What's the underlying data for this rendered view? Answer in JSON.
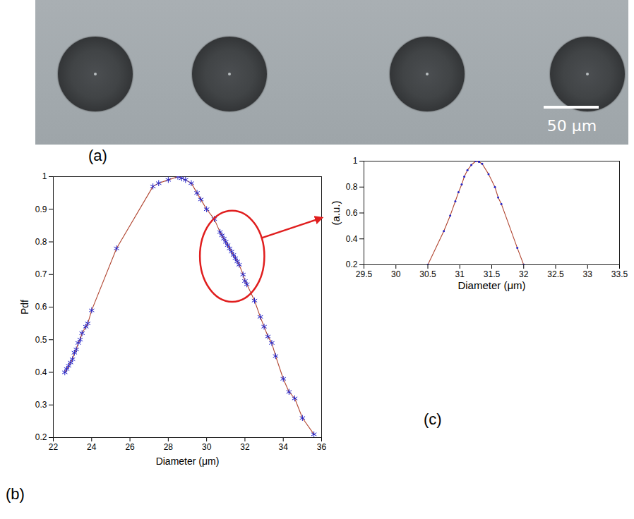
{
  "image": {
    "panel": "(a)",
    "scale_bar": "50 μm"
  },
  "chart_data": [
    {
      "panel": "(b)",
      "type": "line",
      "x_label": "Diameter (μm)",
      "y_label": "Pdf",
      "x": [
        22.6,
        22.7,
        22.8,
        22.9,
        23.0,
        23.1,
        23.2,
        23.3,
        23.4,
        23.5,
        23.7,
        23.8,
        24.0,
        25.3,
        27.2,
        27.5,
        28.0,
        28.5,
        28.7,
        28.9,
        29.2,
        29.5,
        29.7,
        30.0,
        30.4,
        30.7,
        30.8,
        30.9,
        31.0,
        31.1,
        31.2,
        31.3,
        31.4,
        31.5,
        31.6,
        31.7,
        31.9,
        32.0,
        32.1,
        32.5,
        32.8,
        33.0,
        33.2,
        33.4,
        33.6,
        34.0,
        34.3,
        34.6,
        35.0,
        35.6
      ],
      "series": [
        {
          "color": "#b0442f",
          "marker": "star",
          "values": [
            0.4,
            0.41,
            0.42,
            0.43,
            0.44,
            0.46,
            0.47,
            0.49,
            0.5,
            0.52,
            0.54,
            0.55,
            0.59,
            0.78,
            0.97,
            0.98,
            0.99,
            1.0,
            0.995,
            0.99,
            0.98,
            0.95,
            0.93,
            0.9,
            0.87,
            0.83,
            0.82,
            0.81,
            0.8,
            0.79,
            0.78,
            0.77,
            0.76,
            0.75,
            0.74,
            0.73,
            0.7,
            0.68,
            0.67,
            0.62,
            0.57,
            0.54,
            0.51,
            0.49,
            0.45,
            0.38,
            0.34,
            0.32,
            0.26,
            0.21
          ]
        }
      ],
      "xlim": [
        22,
        36
      ],
      "xticks": [
        22,
        24,
        26,
        28,
        30,
        32,
        34,
        36
      ],
      "ylim": [
        0.2,
        1
      ],
      "yticks": [
        0.2,
        0.3,
        0.4,
        0.5,
        0.6,
        0.7,
        0.8,
        0.9,
        1
      ],
      "grid": false
    },
    {
      "panel": "(c)",
      "type": "line",
      "x_label": "Diameter (μm)",
      "y_label": "(a.u.)",
      "x": [
        30.5,
        30.75,
        30.85,
        30.93,
        30.98,
        31.03,
        31.07,
        31.12,
        31.18,
        31.25,
        31.3,
        31.35,
        31.45,
        31.55,
        31.6,
        31.65,
        31.9,
        32.0
      ],
      "series": [
        {
          "color": "#b0442f",
          "marker": "point",
          "values": [
            0.2,
            0.46,
            0.58,
            0.69,
            0.76,
            0.82,
            0.88,
            0.93,
            0.97,
            1.0,
            0.995,
            0.98,
            0.9,
            0.8,
            0.72,
            0.67,
            0.33,
            0.2
          ]
        }
      ],
      "xlim": [
        29.5,
        33.5
      ],
      "xticks": [
        29.5,
        30,
        30.5,
        31,
        31.5,
        32,
        32.5,
        33,
        33.5
      ],
      "ylim": [
        0.2,
        1
      ],
      "yticks": [
        0.2,
        0.4,
        0.6,
        0.8,
        1
      ],
      "grid": false
    }
  ]
}
